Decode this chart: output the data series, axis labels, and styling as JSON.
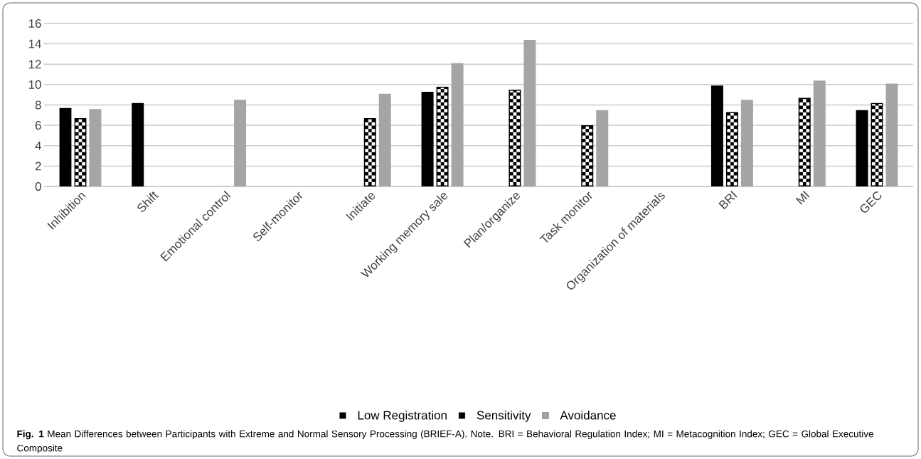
{
  "chart_data": {
    "type": "bar",
    "categories": [
      "Inhibition",
      "Shift",
      "Emotional control",
      "Self-monitor",
      "Initiate",
      "Working memory sale",
      "Plan/organize",
      "Task monitor",
      "Organization of materials",
      "BRI",
      "MI",
      "GEC"
    ],
    "series": [
      {
        "name": "Low Registration",
        "color": "#000000",
        "values": [
          7.7,
          8.2,
          null,
          null,
          null,
          9.3,
          null,
          null,
          null,
          9.9,
          null,
          7.5
        ]
      },
      {
        "name": "Sensitivity",
        "color": "#000000",
        "values": [
          6.7,
          null,
          null,
          null,
          6.7,
          9.8,
          9.5,
          6.0,
          null,
          7.3,
          8.7,
          8.2
        ]
      },
      {
        "name": "Avoidance",
        "color": "#a5a5a5",
        "values": [
          7.6,
          null,
          8.5,
          null,
          9.1,
          12.1,
          14.4,
          7.5,
          null,
          8.5,
          10.4,
          10.1
        ]
      }
    ],
    "ylim": [
      0,
      16
    ],
    "yticks": [
      0,
      2,
      4,
      6,
      8,
      10,
      12,
      14,
      16
    ],
    "grid": "y",
    "legend": "bottom",
    "annotations": [
      "**Fig. 1** Mean Differences between Participants with Extreme and Normal Sensory Processing (BRIEF-A). Note. BRI = Behavioral Regulation Index; MI = Metacognition Index; GEC = Global Executive Composite"
    ]
  }
}
